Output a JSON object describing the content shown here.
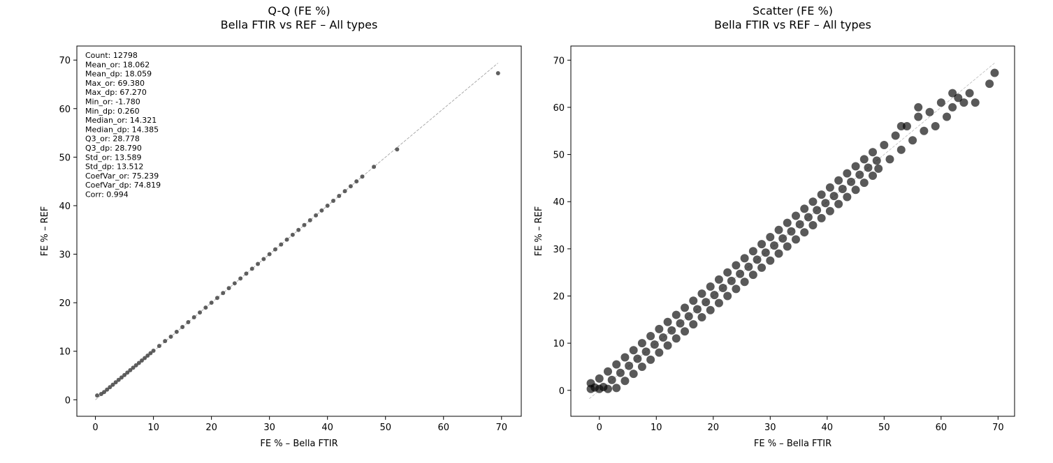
{
  "chart_data": [
    {
      "type": "scatter",
      "title": "Q-Q (FE %)",
      "subtitle": "Bella FTIR vs REF – All types",
      "x_label": "FE % – Bella FTIR",
      "y_label": "FE % – REF",
      "annotations": [
        "Count: 12798",
        "Mean_or: 18.062",
        "Mean_dp: 18.059",
        "Max_or: 69.380",
        "Max_dp: 67.270",
        "Min_or: -1.780",
        "Min_dp: 0.260",
        "Median_or: 14.321",
        "Median_dp: 14.385",
        "Q3_or: 28.778",
        "Q3_dp: 28.790",
        "Std_or: 13.589",
        "Std_dp: 13.512",
        "CoefVar_or: 75.239",
        "CoefVar_dp: 74.819",
        "Corr: 0.994"
      ],
      "color": "#444444",
      "x": [
        0.3,
        1,
        1.5,
        2,
        2.5,
        3,
        3.5,
        4,
        4.5,
        5,
        5.5,
        6,
        6.5,
        7,
        7.5,
        8,
        8.5,
        9,
        9.5,
        10,
        11,
        12,
        13,
        14,
        15,
        16,
        17,
        18,
        19,
        20,
        21,
        22,
        23,
        24,
        25,
        26,
        27,
        28,
        29,
        30,
        31,
        32,
        33,
        34,
        35,
        36,
        37,
        38,
        39,
        40,
        41,
        42,
        43,
        44,
        45,
        46,
        48,
        52,
        69.4
      ],
      "y": [
        0.9,
        1.2,
        1.6,
        2.1,
        2.6,
        3.1,
        3.6,
        4.1,
        4.6,
        5.1,
        5.6,
        6.1,
        6.6,
        7.1,
        7.6,
        8.1,
        8.6,
        9.1,
        9.6,
        10.1,
        11.1,
        12.1,
        13,
        14,
        15,
        16,
        17,
        18,
        19,
        20,
        21,
        22,
        23,
        24,
        25,
        26,
        27,
        28,
        29,
        30,
        31,
        32,
        33,
        34,
        35,
        36,
        37,
        38,
        39,
        40,
        41,
        42,
        43,
        44,
        45,
        46,
        48,
        51.6,
        67.3
      ],
      "reference_line": {
        "x": [
          0,
          69.38
        ],
        "y": [
          0,
          69.38
        ]
      },
      "xlim": [
        -3.2,
        73.4
      ],
      "ylim": [
        -3.4,
        72.9
      ],
      "xticks": [
        0,
        10,
        20,
        30,
        40,
        50,
        60,
        70
      ],
      "yticks": [
        0,
        10,
        20,
        30,
        40,
        50,
        60,
        70
      ]
    },
    {
      "type": "scatter",
      "title": "Scatter (FE %)",
      "subtitle": "Bella FTIR vs REF – All types",
      "x_label": "FE % – Bella FTIR",
      "y_label": "FE % – REF",
      "color": "#000000",
      "x": [
        -1.5,
        -0.8,
        -1.5,
        0,
        0.7,
        0,
        1.5,
        2.2,
        1.5,
        3,
        3.7,
        3,
        4.5,
        5.2,
        4.5,
        6,
        6.7,
        6,
        7.5,
        8.2,
        7.5,
        9,
        9.7,
        9,
        10.5,
        11.2,
        10.5,
        12,
        12.7,
        12,
        13.5,
        14.2,
        13.5,
        15,
        15.7,
        15,
        16.5,
        17.2,
        16.5,
        18,
        18.7,
        18,
        19.5,
        20.2,
        19.5,
        21,
        21.7,
        21,
        22.5,
        23.2,
        22.5,
        24,
        24.7,
        24,
        25.5,
        26.2,
        25.5,
        27,
        27.7,
        27,
        28.5,
        29.2,
        28.5,
        30,
        30.7,
        30,
        31.5,
        32.2,
        31.5,
        33,
        33.7,
        33,
        34.5,
        35.2,
        34.5,
        36,
        36.7,
        36,
        37.5,
        38.2,
        37.5,
        39,
        39.7,
        39,
        40.5,
        41.2,
        40.5,
        42,
        42.7,
        42,
        43.5,
        44.2,
        43.5,
        45,
        45.7,
        45,
        46.5,
        47.2,
        46.5,
        48,
        48.7,
        48,
        49,
        50,
        51,
        52,
        53,
        54,
        55,
        56,
        57,
        58,
        59,
        60,
        61,
        62,
        63,
        64,
        65,
        66,
        68.5,
        69.4,
        56,
        53,
        62
      ],
      "y": [
        0.3,
        0.6,
        1.5,
        0.3,
        0.7,
        2.5,
        0.3,
        2.2,
        4,
        0.5,
        3.7,
        5.5,
        2,
        5.2,
        7,
        3.5,
        6.7,
        8.5,
        5,
        8.2,
        10,
        6.5,
        9.7,
        11.5,
        8,
        11.2,
        13,
        9.5,
        12.7,
        14.5,
        11,
        14.2,
        16,
        12.5,
        15.7,
        17.5,
        14,
        17.2,
        19,
        15.5,
        18.7,
        20.5,
        17,
        20.2,
        22,
        18.5,
        21.7,
        23.5,
        20,
        23.2,
        25,
        21.5,
        24.7,
        26.5,
        23,
        26.2,
        28,
        24.5,
        27.7,
        29.5,
        26,
        29.2,
        31,
        27.5,
        30.7,
        32.5,
        29,
        32.2,
        34,
        30.5,
        33.7,
        35.5,
        32,
        35.2,
        37,
        33.5,
        36.7,
        38.5,
        35,
        38.2,
        40,
        36.5,
        39.7,
        41.5,
        38,
        41.2,
        43,
        39.5,
        42.7,
        44.5,
        41,
        44.2,
        46,
        42.5,
        45.7,
        47.5,
        44,
        47.2,
        49,
        45.5,
        48.7,
        50.5,
        47,
        52,
        49,
        54,
        51,
        56,
        53,
        58,
        55,
        59,
        56,
        61,
        58,
        60,
        62,
        61,
        63,
        61,
        65,
        67.3,
        60,
        56,
        63
      ],
      "reference_line": {
        "x": [
          -1.78,
          69.38
        ],
        "y": [
          -1.78,
          69.38
        ]
      },
      "xlim": [
        -5.0,
        72.9
      ],
      "ylim": [
        -5.5,
        73.0
      ],
      "xticks": [
        0,
        10,
        20,
        30,
        40,
        50,
        60,
        70
      ],
      "yticks": [
        0,
        10,
        20,
        30,
        40,
        50,
        60,
        70
      ]
    }
  ]
}
